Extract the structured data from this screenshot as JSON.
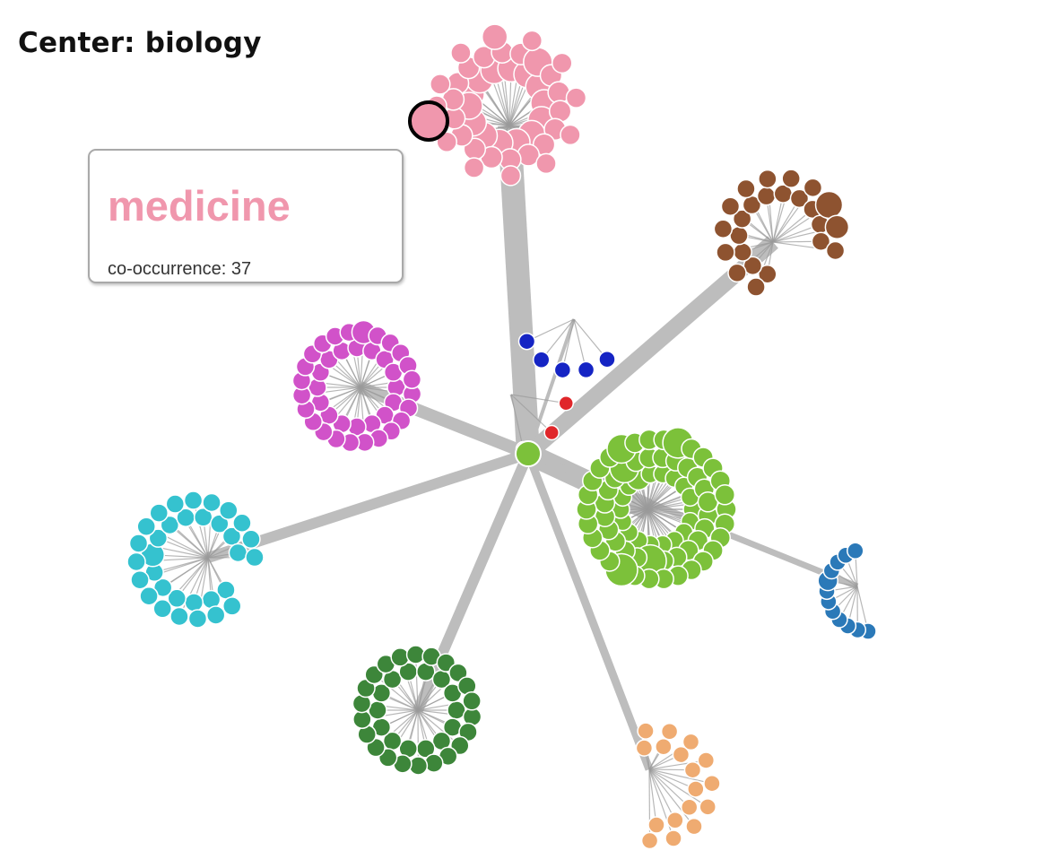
{
  "header": {
    "center_label": "Center: biology"
  },
  "tooltip": {
    "title": "medicine",
    "cooccurrence_label": "co-occurrence: 37"
  },
  "colors": {
    "center": "#7cc13a",
    "edge": "#bdbdbd",
    "hub_spoke": "#9a9a9a",
    "node_stroke": "#ffffff",
    "highlight_stroke": "#000000",
    "tooltip_title": "#f097ad"
  },
  "center_node": {
    "name": "biology"
  },
  "clusters": [
    {
      "id": "medicine",
      "color": "#f097ad",
      "node_count": 45,
      "highlighted": true
    },
    {
      "id": "brown-cluster",
      "color": "#8e5330",
      "node_count": 24,
      "highlighted": false
    },
    {
      "id": "navy-cluster",
      "color": "#1524c4",
      "node_count": 5,
      "highlighted": false
    },
    {
      "id": "red-cluster",
      "color": "#e0262a",
      "node_count": 3,
      "highlighted": false
    },
    {
      "id": "magenta-cluster",
      "color": "#d152c9",
      "node_count": 40,
      "highlighted": false
    },
    {
      "id": "lime-cluster",
      "color": "#7cc13a",
      "node_count": 72,
      "highlighted": false
    },
    {
      "id": "cyan-cluster",
      "color": "#35c2cf",
      "node_count": 32,
      "highlighted": false
    },
    {
      "id": "blue-cluster",
      "color": "#2b79b8",
      "node_count": 12,
      "highlighted": false
    },
    {
      "id": "green-cluster",
      "color": "#3d863a",
      "node_count": 36,
      "highlighted": false
    },
    {
      "id": "orange-cluster",
      "color": "#efab71",
      "node_count": 17,
      "highlighted": false
    }
  ]
}
